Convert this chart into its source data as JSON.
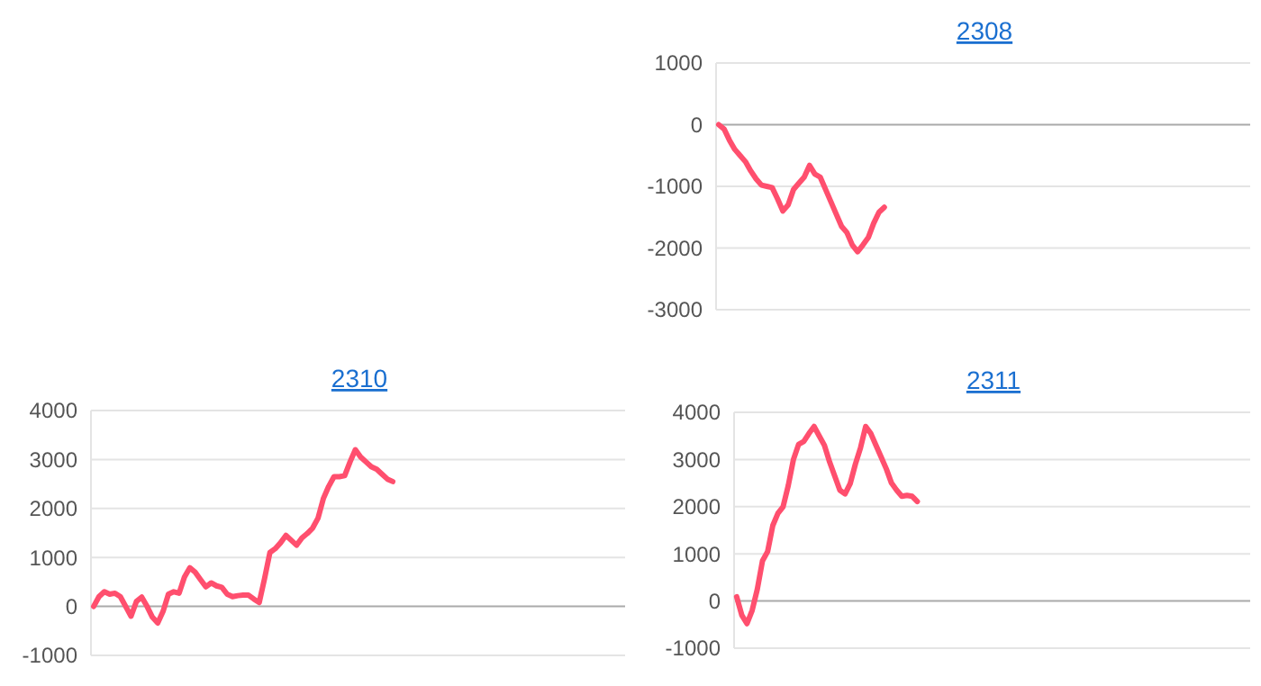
{
  "chart_data": [
    {
      "type": "line",
      "title": "2308",
      "ylim": [
        -3000,
        1000
      ],
      "yticks": [
        -3000,
        -2000,
        -1000,
        0,
        1000
      ],
      "grid": "y",
      "marker": "none",
      "line_style": "solid",
      "categories": [
        null,
        null,
        null,
        null,
        null,
        null,
        null,
        null,
        null,
        null,
        null,
        null,
        null,
        null,
        null,
        null,
        null,
        null,
        null,
        null,
        null,
        null,
        null,
        null,
        null,
        null,
        null,
        null,
        null,
        null,
        null,
        null,
        null,
        null,
        null,
        null,
        null,
        null,
        null,
        null,
        null,
        null,
        null,
        null,
        null,
        null,
        null,
        null,
        null,
        null,
        null,
        null,
        null,
        null,
        null,
        null,
        null,
        null,
        null,
        null,
        null,
        null,
        null,
        null,
        null,
        null,
        null,
        null,
        null,
        null,
        null,
        null,
        null,
        null,
        null,
        null,
        null,
        null,
        null,
        null,
        null,
        null,
        null,
        null,
        null,
        null,
        null,
        null,
        null,
        null,
        null,
        null,
        null,
        null,
        null,
        null,
        null,
        null,
        null,
        null
      ],
      "series": [
        {
          "color": "#ff4f6e",
          "values": [
            0,
            -70,
            -250,
            -400,
            -500,
            -600,
            -750,
            -880,
            -980,
            -1000,
            -1020,
            -1200,
            -1400,
            -1300,
            -1050,
            -950,
            -850,
            -660,
            -800,
            -850,
            -1050,
            -1250,
            -1450,
            -1650,
            -1750,
            -1950,
            -2060,
            -1950,
            -1830,
            -1600,
            -1420,
            -1340,
            null,
            null,
            null,
            null,
            null,
            null,
            null,
            null,
            null,
            null,
            null,
            null,
            null,
            null,
            null,
            null,
            null,
            null,
            null,
            null,
            null,
            null,
            null,
            null,
            null,
            null,
            null,
            null,
            null,
            null,
            null,
            null,
            null,
            null,
            null,
            null,
            null,
            null,
            null,
            null,
            null,
            null,
            null,
            null,
            null,
            null,
            null,
            null,
            null,
            null,
            null,
            null,
            null,
            null,
            null,
            null,
            null,
            null,
            null,
            null,
            null,
            null,
            null,
            null,
            null,
            null,
            null,
            null
          ]
        }
      ]
    },
    {
      "type": "line",
      "title": "2310",
      "ylim": [
        -1000,
        4000
      ],
      "yticks": [
        -1000,
        0,
        1000,
        2000,
        3000,
        4000
      ],
      "grid": "y",
      "marker": "none",
      "line_style": "solid",
      "categories": [
        null,
        null,
        null,
        null,
        null,
        null,
        null,
        null,
        null,
        null,
        null,
        null,
        null,
        null,
        null,
        null,
        null,
        null,
        null,
        null,
        null,
        null,
        null,
        null,
        null,
        null,
        null,
        null,
        null,
        null,
        null,
        null,
        null,
        null,
        null,
        null,
        null,
        null,
        null,
        null,
        null,
        null,
        null,
        null,
        null,
        null,
        null,
        null,
        null,
        null,
        null,
        null,
        null,
        null,
        null,
        null,
        null,
        null,
        null,
        null,
        null,
        null,
        null,
        null,
        null,
        null,
        null,
        null,
        null,
        null,
        null,
        null,
        null,
        null,
        null,
        null,
        null,
        null,
        null,
        null,
        null,
        null,
        null,
        null,
        null,
        null,
        null,
        null,
        null,
        null,
        null,
        null,
        null,
        null,
        null,
        null,
        null,
        null,
        null,
        null
      ],
      "series": [
        {
          "color": "#ff4f6e",
          "values": [
            0,
            200,
            300,
            250,
            270,
            200,
            0,
            -200,
            100,
            190,
            0,
            -220,
            -340,
            -100,
            250,
            300,
            270,
            600,
            790,
            700,
            550,
            400,
            480,
            420,
            390,
            250,
            200,
            220,
            230,
            230,
            150,
            80,
            570,
            1100,
            1180,
            1300,
            1450,
            1350,
            1250,
            1400,
            1490,
            1600,
            1800,
            2200,
            2450,
            2650,
            2650,
            2670,
            2950,
            3200,
            3050,
            2950,
            2850,
            2800,
            2700,
            2600,
            2550,
            null,
            null,
            null,
            null,
            null,
            null,
            null,
            null,
            null,
            null,
            null,
            null,
            null,
            null,
            null,
            null,
            null,
            null,
            null,
            null,
            null,
            null,
            null,
            null,
            null,
            null,
            null,
            null,
            null,
            null,
            null,
            null,
            null,
            null,
            null,
            null,
            null,
            null,
            null,
            null,
            null,
            null,
            null
          ]
        }
      ]
    },
    {
      "type": "line",
      "title": "2311",
      "ylim": [
        -1000,
        4000
      ],
      "yticks": [
        -1000,
        0,
        1000,
        2000,
        3000,
        4000
      ],
      "grid": "y",
      "marker": "none",
      "line_style": "solid",
      "categories": [
        null,
        null,
        null,
        null,
        null,
        null,
        null,
        null,
        null,
        null,
        null,
        null,
        null,
        null,
        null,
        null,
        null,
        null,
        null,
        null,
        null,
        null,
        null,
        null,
        null,
        null,
        null,
        null,
        null,
        null,
        null,
        null,
        null,
        null,
        null,
        null,
        null,
        null,
        null,
        null,
        null,
        null,
        null,
        null,
        null,
        null,
        null,
        null,
        null,
        null,
        null,
        null,
        null,
        null,
        null,
        null,
        null,
        null,
        null,
        null,
        null,
        null,
        null,
        null,
        null,
        null,
        null,
        null,
        null,
        null,
        null,
        null,
        null,
        null,
        null,
        null,
        null,
        null,
        null,
        null,
        null,
        null,
        null,
        null,
        null,
        null,
        null,
        null,
        null,
        null,
        null,
        null,
        null,
        null,
        null,
        null,
        null,
        null,
        null,
        null
      ],
      "series": [
        {
          "color": "#ff4f6e",
          "values": [
            90,
            -300,
            -480,
            -200,
            250,
            850,
            1050,
            1600,
            1860,
            2000,
            2450,
            3000,
            3320,
            3380,
            3550,
            3700,
            3500,
            3300,
            2950,
            2650,
            2350,
            2270,
            2490,
            2900,
            3250,
            3700,
            3550,
            3300,
            3050,
            2800,
            2500,
            2350,
            2220,
            2240,
            2220,
            2110,
            null,
            null,
            null,
            null,
            null,
            null,
            null,
            null,
            null,
            null,
            null,
            null,
            null,
            null,
            null,
            null,
            null,
            null,
            null,
            null,
            null,
            null,
            null,
            null,
            null,
            null,
            null,
            null,
            null,
            null,
            null,
            null,
            null,
            null,
            null,
            null,
            null,
            null,
            null,
            null,
            null,
            null,
            null,
            null,
            null,
            null,
            null,
            null,
            null,
            null,
            null,
            null,
            null,
            null,
            null,
            null,
            null,
            null,
            null,
            null,
            null,
            null,
            null,
            null
          ]
        }
      ]
    }
  ]
}
